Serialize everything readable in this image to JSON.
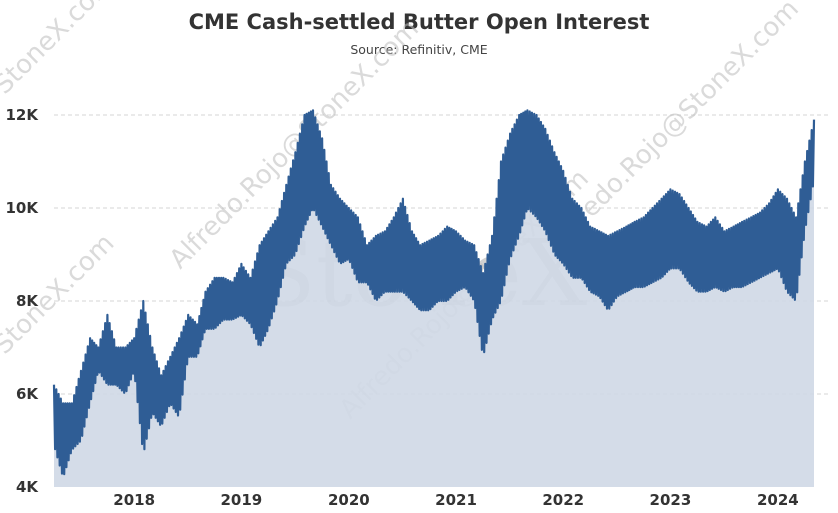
{
  "chart_data": {
    "type": "area",
    "title": "CME Cash-settled Butter Open Interest",
    "subtitle": "Source: Refinitiv, CME",
    "xlabel": "",
    "ylabel": "",
    "ylim": [
      4000,
      12000
    ],
    "xlim": [
      "2017-10-01",
      "2024-11-01"
    ],
    "y_ticks": [
      {
        "value": 4000,
        "label": "4K"
      },
      {
        "value": 6000,
        "label": "6K"
      },
      {
        "value": 8000,
        "label": "8K"
      },
      {
        "value": 10000,
        "label": "10K"
      },
      {
        "value": 12000,
        "label": "12K"
      }
    ],
    "x_ticks": [
      "2018",
      "2019",
      "2020",
      "2021",
      "2022",
      "2023",
      "2024"
    ],
    "grid": "horizontal-dashed",
    "legend": "none",
    "colors": {
      "line": "#2f5d95",
      "fill": "#cfd8e6",
      "grid": "#d6d6d6"
    },
    "series": [
      {
        "x": [
          "2017-10-01",
          "2017-11-01",
          "2017-12-01",
          "2018-01-01",
          "2018-02-01",
          "2018-03-01",
          "2018-04-01",
          "2018-05-01",
          "2018-06-01",
          "2018-07-01",
          "2018-08-01",
          "2018-09-01",
          "2018-10-01",
          "2018-11-01",
          "2018-12-01",
          "2019-01-01",
          "2019-02-01",
          "2019-03-01",
          "2019-04-01",
          "2019-05-01",
          "2019-06-01",
          "2019-07-01",
          "2019-08-01",
          "2019-09-01",
          "2019-10-01",
          "2019-11-01",
          "2019-12-01",
          "2020-01-01",
          "2020-02-01",
          "2020-03-01",
          "2020-04-01",
          "2020-05-01",
          "2020-06-01",
          "2020-07-01",
          "2020-08-01",
          "2020-09-01",
          "2020-10-01",
          "2020-11-01",
          "2020-12-01",
          "2021-01-01",
          "2021-02-01",
          "2021-03-01",
          "2021-04-01",
          "2021-05-01",
          "2021-06-01",
          "2021-07-01",
          "2021-08-01",
          "2021-09-01",
          "2021-10-01",
          "2021-11-01",
          "2021-12-01",
          "2022-01-01",
          "2022-02-01",
          "2022-03-01",
          "2022-04-01",
          "2022-05-01",
          "2022-06-01",
          "2022-07-01",
          "2022-08-01",
          "2022-09-01",
          "2022-10-01",
          "2022-11-01",
          "2022-12-01",
          "2023-01-01",
          "2023-02-01",
          "2023-03-01",
          "2023-04-01",
          "2023-05-01",
          "2023-06-01",
          "2023-07-01",
          "2023-08-01",
          "2023-09-01",
          "2023-10-01",
          "2023-11-01",
          "2023-12-01",
          "2024-01-01",
          "2024-02-01",
          "2024-03-01",
          "2024-04-01",
          "2024-05-01",
          "2024-06-01",
          "2024-07-01",
          "2024-08-01",
          "2024-09-01",
          "2024-10-01",
          "2024-11-01"
        ],
        "high": [
          6200,
          5800,
          5800,
          6500,
          7200,
          7000,
          7700,
          7000,
          7000,
          7200,
          8000,
          7000,
          6400,
          6800,
          7200,
          7700,
          7500,
          8200,
          8500,
          8500,
          8400,
          8800,
          8500,
          9200,
          9500,
          9800,
          10500,
          11200,
          12000,
          12100,
          11500,
          10500,
          10200,
          10000,
          9800,
          9200,
          9400,
          9500,
          9800,
          10200,
          9500,
          9200,
          9300,
          9400,
          9600,
          9500,
          9300,
          9200,
          8600,
          9400,
          11000,
          11600,
          12000,
          12100,
          12000,
          11700,
          11200,
          10800,
          10200,
          10000,
          9600,
          9500,
          9400,
          9500,
          9600,
          9700,
          9800,
          10000,
          10200,
          10400,
          10300,
          10000,
          9700,
          9600,
          9800,
          9500,
          9600,
          9700,
          9800,
          9900,
          10100,
          10400,
          10200,
          9800,
          11000,
          11900
        ],
        "low": [
          4900,
          4200,
          4800,
          5000,
          5800,
          6500,
          6200,
          6200,
          6000,
          6500,
          4700,
          5600,
          5300,
          5800,
          5500,
          6800,
          6800,
          7400,
          7400,
          7600,
          7600,
          7700,
          7500,
          7000,
          7400,
          8000,
          8800,
          9000,
          9600,
          10000,
          9600,
          9200,
          8800,
          8900,
          8400,
          8400,
          8000,
          8200,
          8200,
          8200,
          8000,
          7800,
          7800,
          8000,
          8000,
          8200,
          8300,
          8000,
          6800,
          7600,
          8000,
          8900,
          9400,
          10000,
          9800,
          9500,
          9000,
          8800,
          8500,
          8500,
          8200,
          8100,
          7800,
          8100,
          8200,
          8300,
          8300,
          8400,
          8500,
          8700,
          8700,
          8400,
          8200,
          8200,
          8300,
          8200,
          8300,
          8300,
          8400,
          8500,
          8600,
          8700,
          8200,
          8000,
          9500,
          10600
        ]
      }
    ]
  }
}
